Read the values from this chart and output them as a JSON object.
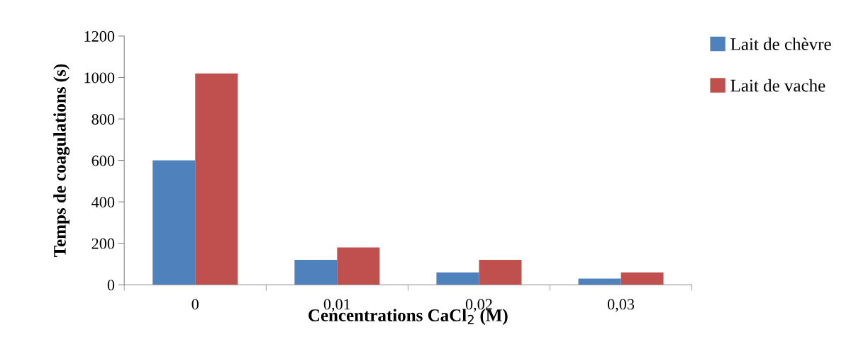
{
  "chart_data": {
    "type": "bar",
    "xlabel": "Cencentrations CaCl$_{2}$ (M)",
    "ylabel": "Temps de coagulations (s)",
    "categories": [
      "0",
      "0,01",
      "0,02",
      "0,03"
    ],
    "series": [
      {
        "name": "Lait de chèvre",
        "color": "#4f81bd",
        "values": [
          600,
          120,
          60,
          30
        ]
      },
      {
        "name": "Lait de vache",
        "color": "#c0504d",
        "values": [
          1020,
          180,
          120,
          60
        ]
      }
    ],
    "ylim": [
      0,
      1200
    ],
    "yticks": [
      0,
      200,
      400,
      600,
      800,
      1000,
      1200
    ],
    "grid": false,
    "legend": "top right"
  }
}
